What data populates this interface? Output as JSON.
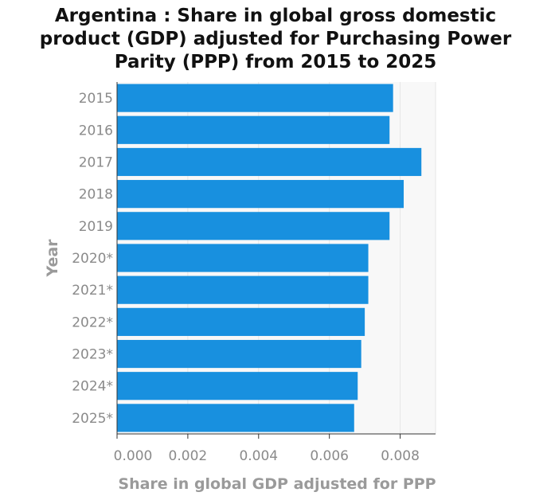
{
  "title_lines": [
    "Argentina : Share in global gross domestic",
    "product (GDP) adjusted for Purchasing Power",
    "Parity (PPP) from 2015 to 2025"
  ],
  "chart_data": {
    "type": "bar",
    "orientation": "horizontal",
    "title": "Argentina : Share in global gross domestic product (GDP) adjusted for Purchasing Power Parity (PPP) from 2015 to 2025",
    "categories": [
      "2015",
      "2016",
      "2017",
      "2018",
      "2019",
      "2020*",
      "2021*",
      "2022*",
      "2023*",
      "2024*",
      "2025*"
    ],
    "values": [
      0.0078,
      0.0077,
      0.0086,
      0.0081,
      0.0077,
      0.0071,
      0.0071,
      0.007,
      0.0069,
      0.0068,
      0.0067
    ],
    "xlabel": "Share in global GDP adjusted for PPP",
    "ylabel": "Year",
    "xlim": [
      0,
      0.009
    ],
    "xticks": [
      "0.000",
      "0.002",
      "0.004",
      "0.006",
      "0.008"
    ],
    "xtick_values": [
      0,
      0.002,
      0.004,
      0.006,
      0.008
    ],
    "bar_color": "#1890df",
    "grid": "vertical",
    "legend": "none"
  }
}
